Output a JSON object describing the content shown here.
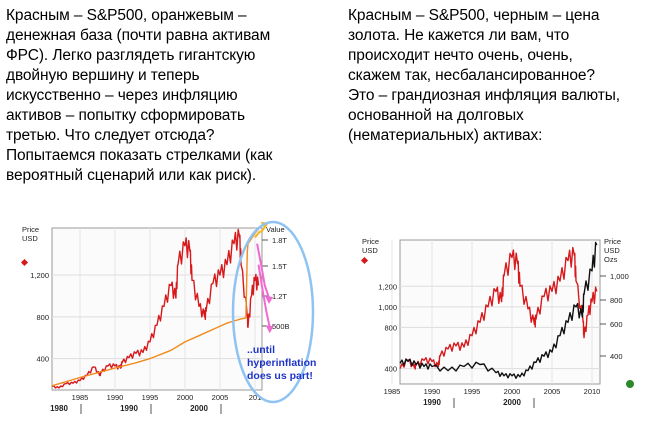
{
  "left_text": "Красным – S&P500, оранжевым –\nденежная база (почти равна активам\nФРС). Легко разглядеть гигантскую\nдвойную вершину и теперь\nискусственно – через инфляцию\nактивов – попытку сформировать\nтретью.  Что следует отсюда?\nПопытаемся показать стрелками (как\nвероятный сценарий или как риск).",
  "right_text": "Красным – S&P500, черным – цена\nзолота. Не кажется ли вам, что\nпроисходит нечто очень, очень,\nскажем так, несбалансированное?\nЭто – грандиозная инфляция валюты,\nоснованной на долговых\n(нематериальных) активах:",
  "annotation": "..until\nhyperinflation\ndoes us part!",
  "chart_data": [
    {
      "type": "line",
      "title": "",
      "ylabel_left": "Price\nUSD",
      "ylabel_right": "Value",
      "y_ticks_left": [
        "400",
        "800",
        "1,200"
      ],
      "y_ticks_right": [
        "500B",
        "1.2T",
        "1.5T",
        "1.8T"
      ],
      "x_ticks": [
        "1985",
        "1990",
        "1995",
        "2000",
        "2005",
        "201"
      ],
      "decades": [
        "1980",
        "1990",
        "2000"
      ],
      "ylim": [
        100,
        1650
      ],
      "xlim": [
        1981,
        2011
      ],
      "series": [
        {
          "color": "#d7191c",
          "x": [
            1981,
            1982,
            1983,
            1984,
            1985,
            1986,
            1987,
            1987.8,
            1988,
            1989,
            1990,
            1990.8,
            1991,
            1992,
            1993,
            1994,
            1995,
            1996,
            1997,
            1998,
            1998.7,
            1999,
            2000,
            2000.7,
            2001,
            2002,
            2002.8,
            2003,
            2004,
            2005,
            2006,
            2007,
            2007.8,
            2008,
            2008.9,
            2009,
            2009.5,
            2010,
            2010.5
          ],
          "y": [
            135,
            120,
            160,
            165,
            190,
            240,
            320,
            240,
            265,
            330,
            330,
            310,
            360,
            410,
            450,
            460,
            560,
            720,
            900,
            1100,
            980,
            1300,
            1480,
            1430,
            1150,
            900,
            800,
            850,
            1120,
            1200,
            1300,
            1500,
            1560,
            1300,
            800,
            700,
            1000,
            1150,
            1100
          ]
        },
        {
          "color": "#f08a1c",
          "x": [
            1981,
            1985,
            1990,
            1993,
            1995,
            1998,
            2000,
            2002,
            2004,
            2006,
            2007,
            2008,
            2008.7,
            2008.9,
            2009,
            2009.5,
            2010,
            2010.5
          ],
          "y": [
            140,
            220,
            310,
            360,
            400,
            480,
            560,
            620,
            680,
            740,
            760,
            780,
            790,
            1420,
            1500,
            1550,
            1600,
            1640
          ]
        },
        {
          "color": "#f5b51e",
          "x": [
            2010,
            2010.6,
            2011,
            2011.8
          ],
          "y": [
            1560,
            1610,
            1620,
            1700
          ]
        },
        {
          "color": "#f06ad0",
          "x": [
            2010.3,
            2010.9,
            2011.4,
            2012
          ],
          "y": [
            1500,
            1290,
            1100,
            980
          ]
        },
        {
          "color": "#f06ad0",
          "x": [
            2010.5,
            2011.1,
            2011.6,
            2012.1
          ],
          "y": [
            1300,
            1050,
            860,
            700
          ]
        }
      ]
    },
    {
      "type": "line",
      "title": "",
      "ylabel_left": "Price\nUSD",
      "ylabel_right": "Price\nUSD\nOzs",
      "y_ticks_left": [
        "400",
        "800",
        "1,000",
        "1,200"
      ],
      "y_ticks_right": [
        "400",
        "600",
        "800",
        "1,000"
      ],
      "x_ticks": [
        "1985",
        "1990",
        "1995",
        "2000",
        "2005",
        "2010"
      ],
      "decades": [
        "1990",
        "2000"
      ],
      "ylim": [
        250,
        1650
      ],
      "xlim": [
        1986,
        2011
      ],
      "series": [
        {
          "color": "#d7191c",
          "name": "S&P500",
          "x": [
            1986,
            1987,
            1987.8,
            1988,
            1989,
            1990,
            1990.8,
            1991,
            1992,
            1993,
            1994,
            1995,
            1996,
            1997,
            1998,
            1998.7,
            1999,
            2000,
            2000.7,
            2001,
            2002,
            2002.8,
            2003,
            2004,
            2005,
            2006,
            2007,
            2007.8,
            2008,
            2008.9,
            2009,
            2009.5,
            2010,
            2010.6
          ],
          "y": [
            400,
            480,
            410,
            430,
            480,
            470,
            420,
            520,
            590,
            620,
            610,
            720,
            850,
            1000,
            1150,
            1050,
            1300,
            1480,
            1420,
            1200,
            980,
            830,
            880,
            1100,
            1150,
            1250,
            1450,
            1500,
            1250,
            850,
            700,
            920,
            1050,
            1150
          ]
        },
        {
          "color": "#111111",
          "name": "Gold",
          "x": [
            1986,
            1987,
            1988,
            1989,
            1990,
            1992,
            1994,
            1996,
            1998,
            1999,
            2000,
            2001,
            2002,
            2003,
            2004,
            2005,
            2006,
            2007,
            2008,
            2008.8,
            2009,
            2010,
            2010.6
          ],
          "y": [
            450,
            470,
            440,
            420,
            420,
            380,
            420,
            440,
            360,
            330,
            330,
            320,
            380,
            460,
            520,
            560,
            720,
            850,
            1000,
            900,
            1120,
            1350,
            1600
          ]
        }
      ]
    }
  ]
}
